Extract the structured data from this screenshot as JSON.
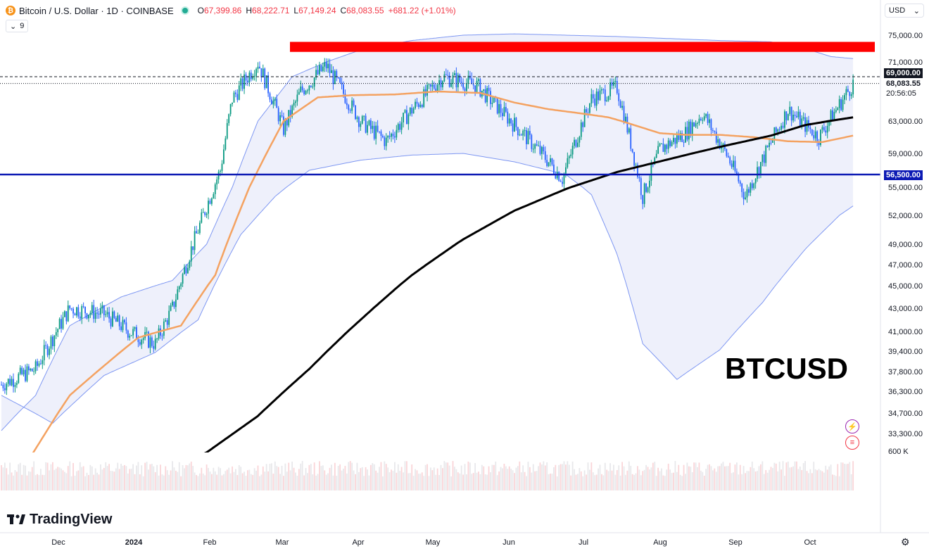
{
  "header": {
    "coin_symbol": "₿",
    "title": "Bitcoin / U.S. Dollar · 1D · COINBASE",
    "ohlc": [
      {
        "k": "O",
        "v": "67,399.86"
      },
      {
        "k": "H",
        "v": "68,222.71"
      },
      {
        "k": "L",
        "v": "67,149.24"
      },
      {
        "k": "C",
        "v": "68,083.55"
      },
      {
        "k": "",
        "v": "+681.22 (+1.01%)"
      }
    ],
    "indicator_count": "9"
  },
  "currency_select": {
    "value": "USD",
    "icon": "chevron-down-icon"
  },
  "watermark": "BTCUSD",
  "branding": "TradingView",
  "colors": {
    "up": "#089981",
    "down": "#2962ff",
    "red_band": "#ff0000",
    "support": "#0c1ab4",
    "ma50": "#f4a261",
    "ma200": "#000000",
    "bollinger": "#7e97f2",
    "bollinger_fill": "#eef0fb"
  },
  "price_tags": {
    "resistance": "69,000.00",
    "last": "68,083.55",
    "countdown": "20:56:05",
    "support": "56,500.00"
  },
  "chart_data": {
    "type": "candlestick",
    "title": "Bitcoin / U.S. Dollar · 1D · COINBASE",
    "x_ticks": [
      "Dec",
      "2024",
      "Feb",
      "Mar",
      "Apr",
      "May",
      "Jun",
      "Jul",
      "Aug",
      "Sep",
      "Oct"
    ],
    "y_ticks": [
      "75,000.00",
      "71,000.00",
      "63,000.00",
      "59,000.00",
      "55,000.00",
      "52,000.00",
      "49,000.00",
      "47,000.00",
      "45,000.00",
      "43,000.00",
      "41,000.00",
      "39,400.00",
      "37,800.00",
      "36,300.00",
      "34,700.00",
      "33,300.00"
    ],
    "y_tick_values": [
      75000,
      71000,
      63000,
      59000,
      55000,
      52000,
      49000,
      47000,
      45000,
      43000,
      41000,
      39400,
      37800,
      36300,
      34700,
      33300
    ],
    "volume_label": "600 K",
    "horizontal_levels": [
      {
        "name": "resistance",
        "value": 69000
      },
      {
        "name": "support",
        "value": 56500
      }
    ],
    "resistance_zone": {
      "from": 72500,
      "to": 74000,
      "start": "Mar",
      "end": "Oct"
    },
    "series_keypoints": {
      "close": [
        [
          0,
          36800
        ],
        [
          20,
          38000
        ],
        [
          40,
          43000
        ],
        [
          60,
          42500
        ],
        [
          75,
          41000
        ],
        [
          90,
          40000
        ],
        [
          100,
          43000
        ],
        [
          110,
          48000
        ],
        [
          118,
          52000
        ],
        [
          128,
          57000
        ],
        [
          135,
          66000
        ],
        [
          150,
          71000
        ],
        [
          165,
          62000
        ],
        [
          175,
          67000
        ],
        [
          190,
          70500
        ],
        [
          210,
          63000
        ],
        [
          225,
          60500
        ],
        [
          240,
          64500
        ],
        [
          258,
          69000
        ],
        [
          278,
          67800
        ],
        [
          298,
          63000
        ],
        [
          318,
          58500
        ],
        [
          328,
          56000
        ],
        [
          345,
          66000
        ],
        [
          360,
          67500
        ],
        [
          375,
          54000
        ],
        [
          385,
          59500
        ],
        [
          400,
          61500
        ],
        [
          410,
          64000
        ],
        [
          425,
          58500
        ],
        [
          435,
          54000
        ],
        [
          448,
          59500
        ],
        [
          460,
          64500
        ],
        [
          470,
          62500
        ],
        [
          478,
          61000
        ],
        [
          488,
          64500
        ],
        [
          498,
          68083.55
        ]
      ],
      "ma50": [
        [
          0,
          28500
        ],
        [
          40,
          36000
        ],
        [
          80,
          40500
        ],
        [
          105,
          41500
        ],
        [
          125,
          46000
        ],
        [
          145,
          55000
        ],
        [
          165,
          63000
        ],
        [
          185,
          66200
        ],
        [
          205,
          66500
        ],
        [
          230,
          66600
        ],
        [
          255,
          67000
        ],
        [
          280,
          66800
        ],
        [
          300,
          65500
        ],
        [
          320,
          64600
        ],
        [
          340,
          64000
        ],
        [
          355,
          63500
        ],
        [
          370,
          62500
        ],
        [
          385,
          61500
        ],
        [
          400,
          61300
        ],
        [
          420,
          61300
        ],
        [
          440,
          61000
        ],
        [
          460,
          60500
        ],
        [
          480,
          60400
        ],
        [
          498,
          61200
        ]
      ],
      "ma200": [
        [
          90,
          30500
        ],
        [
          120,
          32000
        ],
        [
          150,
          34500
        ],
        [
          180,
          38000
        ],
        [
          210,
          42000
        ],
        [
          240,
          46000
        ],
        [
          270,
          49500
        ],
        [
          300,
          52500
        ],
        [
          330,
          54800
        ],
        [
          360,
          56800
        ],
        [
          390,
          58300
        ],
        [
          420,
          59800
        ],
        [
          450,
          61200
        ],
        [
          470,
          62500
        ],
        [
          498,
          63500
        ]
      ],
      "bb_upper": [
        [
          0,
          33500
        ],
        [
          20,
          36000
        ],
        [
          40,
          41500
        ],
        [
          70,
          44000
        ],
        [
          100,
          45500
        ],
        [
          120,
          49000
        ],
        [
          135,
          55000
        ],
        [
          150,
          63000
        ],
        [
          170,
          69000
        ],
        [
          190,
          71000
        ],
        [
          210,
          72800
        ],
        [
          240,
          74200
        ],
        [
          270,
          75000
        ],
        [
          300,
          75200
        ],
        [
          330,
          75000
        ],
        [
          360,
          74800
        ],
        [
          390,
          74500
        ],
        [
          420,
          74200
        ],
        [
          450,
          74000
        ],
        [
          470,
          73000
        ],
        [
          485,
          71800
        ],
        [
          498,
          71500
        ]
      ],
      "bb_lower": [
        [
          0,
          36000
        ],
        [
          30,
          34000
        ],
        [
          60,
          37500
        ],
        [
          90,
          39300
        ],
        [
          115,
          42000
        ],
        [
          140,
          50000
        ],
        [
          160,
          54000
        ],
        [
          180,
          57000
        ],
        [
          210,
          58200
        ],
        [
          240,
          58800
        ],
        [
          270,
          59000
        ],
        [
          300,
          58000
        ],
        [
          330,
          56500
        ],
        [
          345,
          54200
        ],
        [
          360,
          48000
        ],
        [
          375,
          40000
        ],
        [
          395,
          37200
        ],
        [
          420,
          39500
        ],
        [
          445,
          43500
        ],
        [
          470,
          48500
        ],
        [
          490,
          52000
        ],
        [
          498,
          53000
        ]
      ]
    }
  }
}
